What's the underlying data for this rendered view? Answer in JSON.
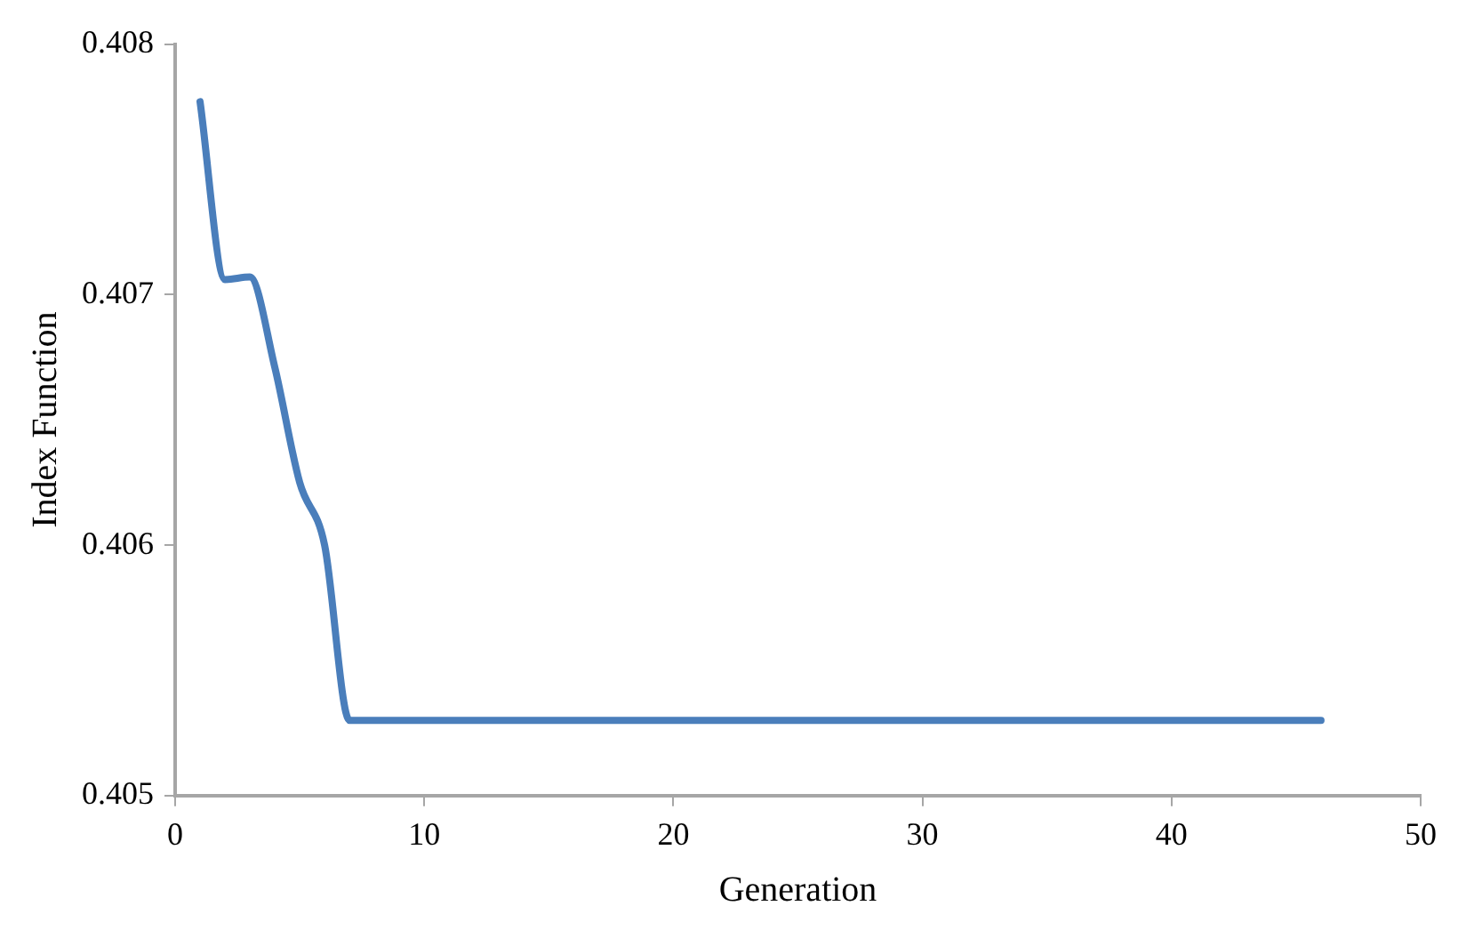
{
  "chart_data": {
    "type": "line",
    "xlabel": "Generation",
    "ylabel": "Index Function",
    "series": [
      {
        "color": "#4a7ebb",
        "x": [
          1,
          2,
          3,
          4,
          5,
          6,
          7,
          8,
          10,
          20,
          30,
          40,
          46
        ],
        "values": [
          0.40777,
          0.40706,
          0.40707,
          0.40671,
          0.40625,
          0.406,
          0.4053,
          0.4053,
          0.4053,
          0.4053,
          0.4053,
          0.4053,
          0.4053
        ]
      }
    ],
    "xlim": [
      0,
      50
    ],
    "xticks": [
      0,
      10,
      20,
      30,
      40,
      50
    ],
    "ylim": [
      0.405,
      0.408
    ],
    "yticks": [
      0.405,
      0.406,
      0.407,
      0.408
    ],
    "grid": false,
    "legend": false,
    "marker": "none",
    "line_style": "solid"
  }
}
